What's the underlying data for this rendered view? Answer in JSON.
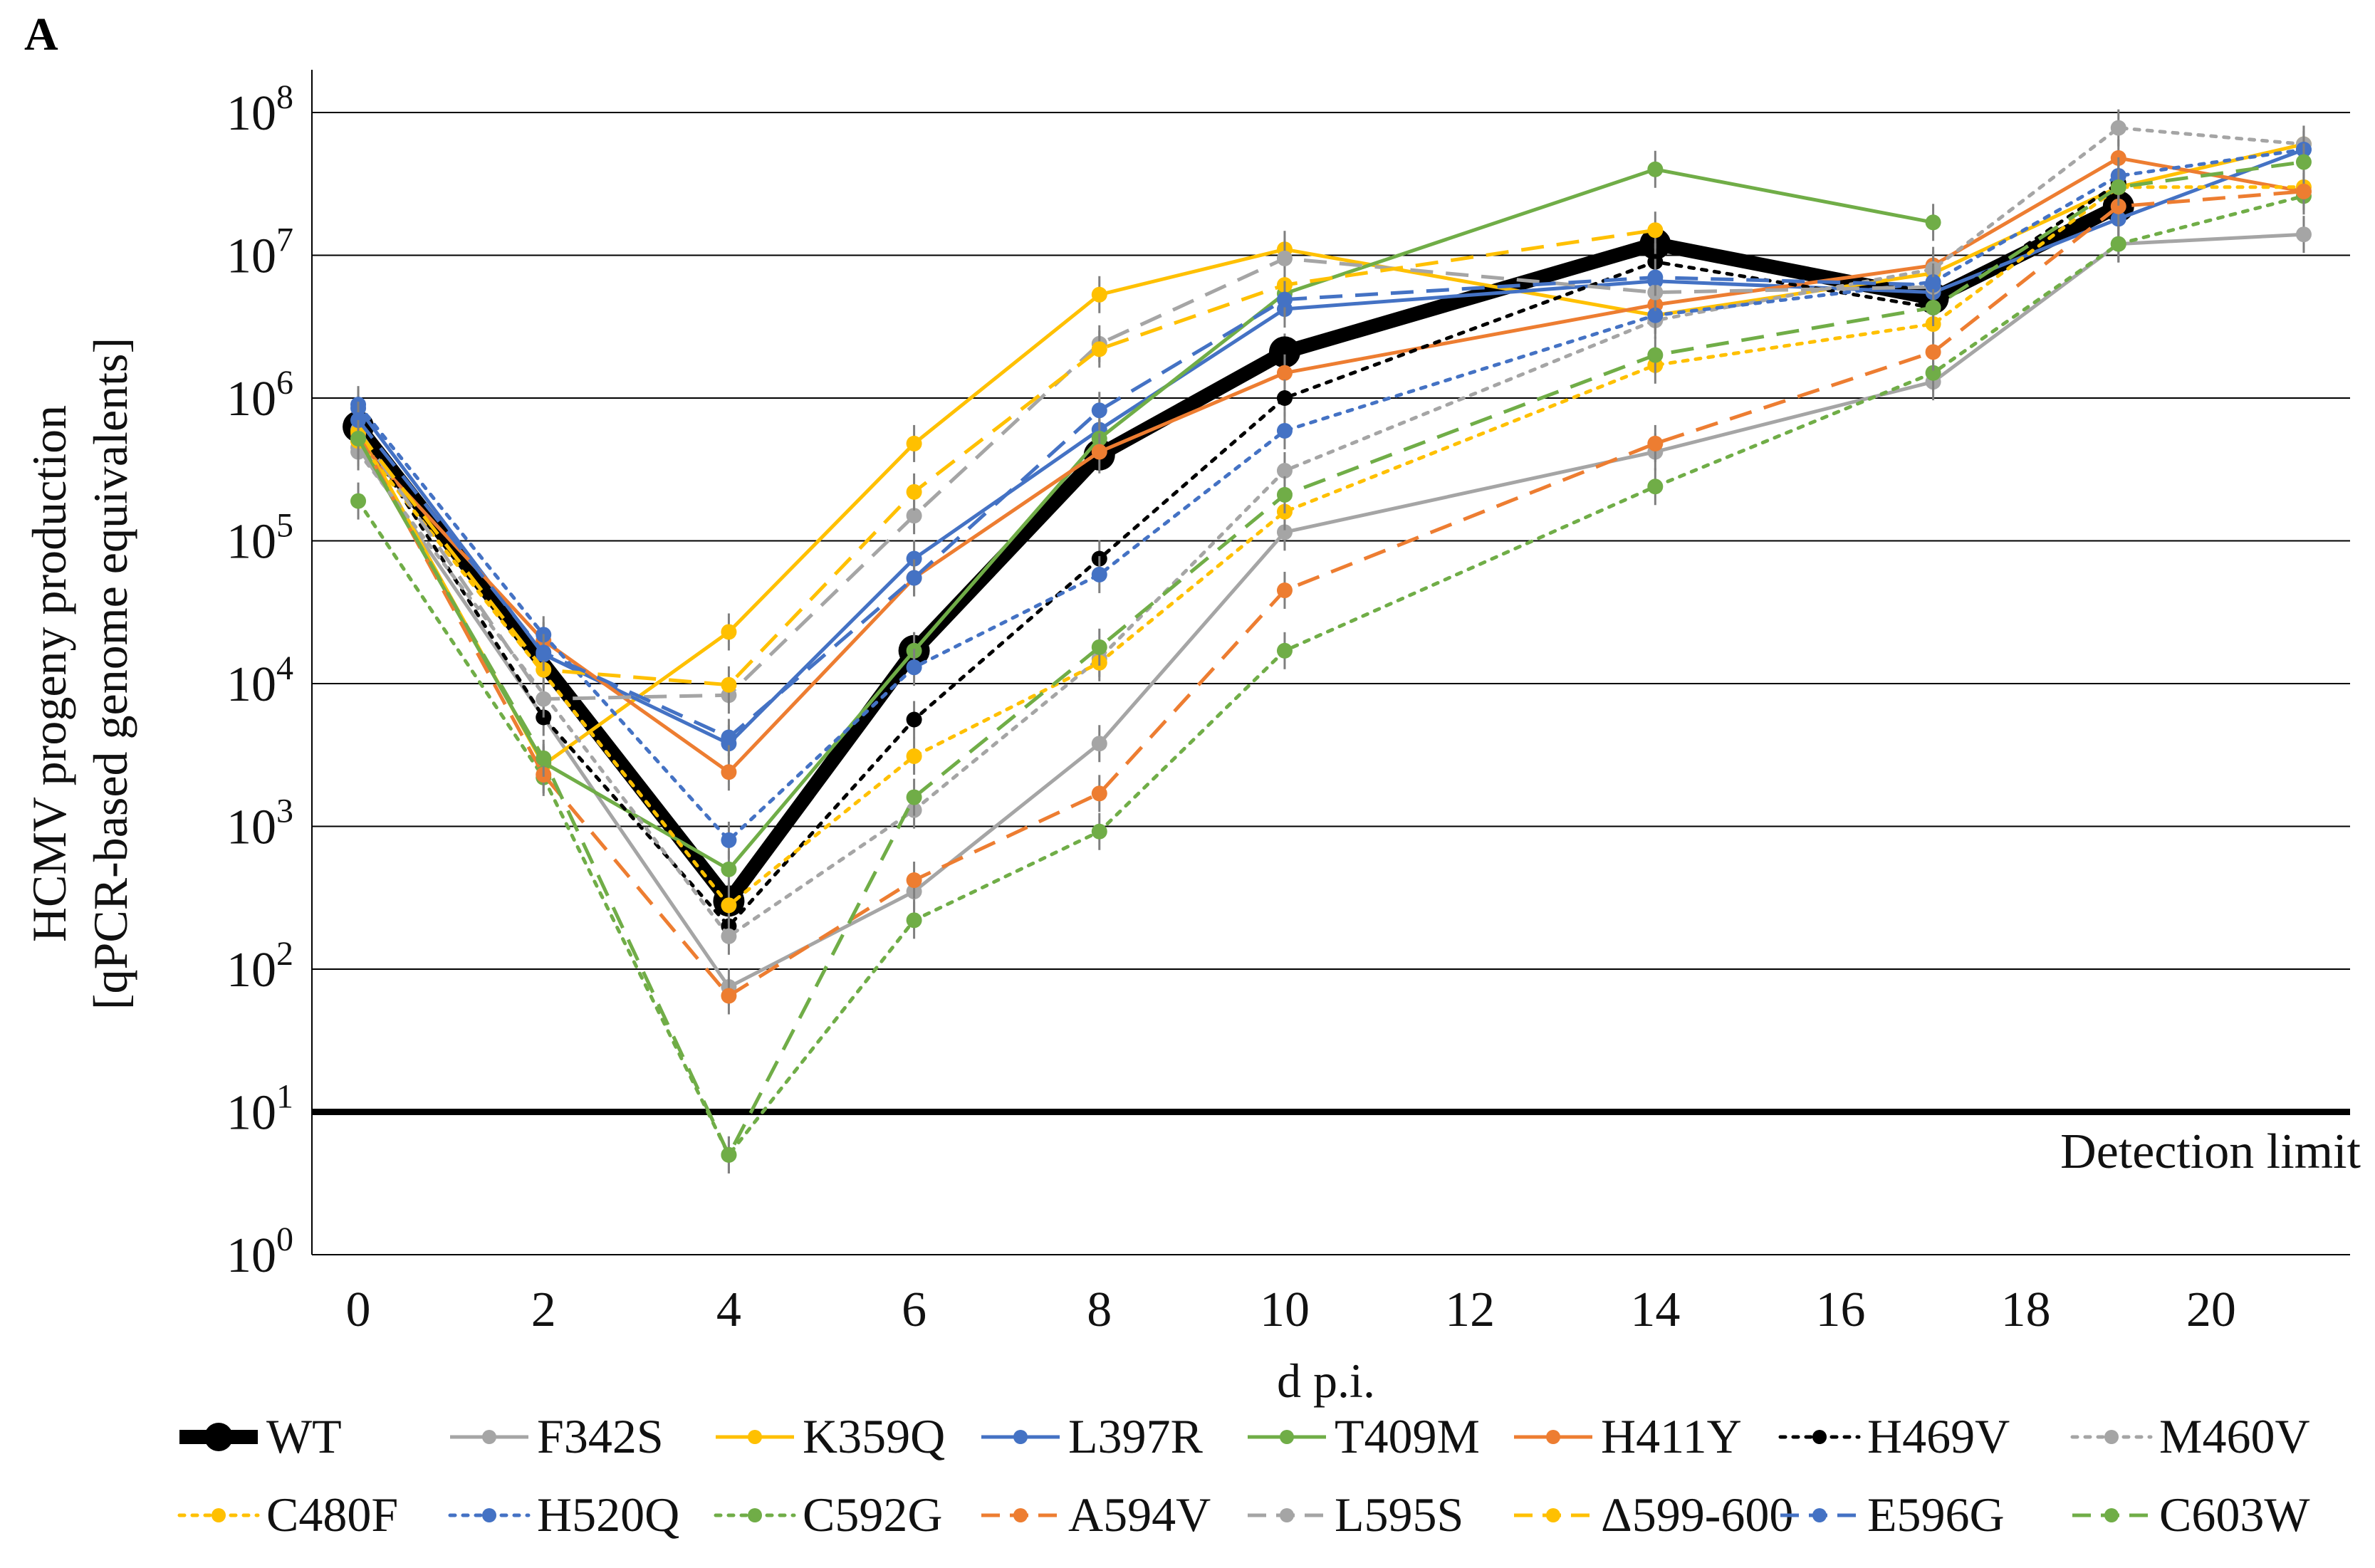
{
  "panel_label": "A",
  "chart_data": {
    "type": "line",
    "title": "",
    "xlabel": "d p.i.",
    "ylabel_line1": "HCMV progeny production",
    "ylabel_line2": "[qPCR-based genome equivalents]",
    "x_ticks": [
      "0",
      "2",
      "4",
      "6",
      "8",
      "10",
      "12",
      "14",
      "16",
      "18",
      "20"
    ],
    "x_tick_values": [
      0,
      2,
      4,
      6,
      8,
      10,
      12,
      14,
      16,
      18,
      20
    ],
    "xlim": [
      -0.5,
      21.5
    ],
    "y_scale": "log10",
    "ylim_exponent": [
      0,
      8
    ],
    "y_ticks": [
      {
        "base": "10",
        "exp": "0",
        "value": 1
      },
      {
        "base": "10",
        "exp": "1",
        "value": 10
      },
      {
        "base": "10",
        "exp": "2",
        "value": 100
      },
      {
        "base": "10",
        "exp": "3",
        "value": 1000
      },
      {
        "base": "10",
        "exp": "4",
        "value": 10000
      },
      {
        "base": "10",
        "exp": "5",
        "value": 100000
      },
      {
        "base": "10",
        "exp": "6",
        "value": 1000000
      },
      {
        "base": "10",
        "exp": "7",
        "value": 10000000
      },
      {
        "base": "10",
        "exp": "8",
        "value": 100000000
      }
    ],
    "grid": true,
    "reference_line": {
      "value": 10,
      "label": "Detection limit"
    },
    "legend_position": "bottom",
    "series": [
      {
        "name": "WT",
        "color": "#000000",
        "style": "solid",
        "bold": true,
        "x": [
          0,
          4,
          6,
          8,
          10,
          14,
          17,
          19
        ],
        "values": [
          630000,
          300,
          17000,
          400000,
          2100000,
          12000000,
          5000000,
          22000000
        ]
      },
      {
        "name": "F342S",
        "color": "#A5A5A5",
        "style": "solid",
        "x": [
          0,
          4,
          6,
          8,
          10,
          14,
          17,
          19,
          21
        ],
        "values": [
          450000,
          75,
          350,
          3800,
          115000,
          420000,
          1300000,
          12000000,
          14000000
        ]
      },
      {
        "name": "K359Q",
        "color": "#FFC000",
        "style": "solid",
        "x": [
          0,
          2,
          4,
          6,
          8,
          10,
          14,
          17,
          19,
          21
        ],
        "values": [
          600000,
          2700,
          23000,
          480000,
          5300000,
          11000000,
          3800000,
          7500000,
          30000000,
          60000000
        ]
      },
      {
        "name": "L397R",
        "color": "#4472C4",
        "style": "solid",
        "x": [
          0,
          2,
          4,
          6,
          8,
          10,
          14,
          17,
          19,
          21
        ],
        "values": [
          850000,
          16000,
          3800,
          75000,
          600000,
          4200000,
          6600000,
          5500000,
          18000000,
          55000000
        ]
      },
      {
        "name": "T409M",
        "color": "#70AD47",
        "style": "solid",
        "x": [
          0,
          2,
          4,
          6,
          8,
          10,
          14,
          17
        ],
        "values": [
          520000,
          2800,
          500,
          17000,
          520000,
          5400000,
          40000000,
          17000000
        ]
      },
      {
        "name": "H411Y",
        "color": "#ED7D31",
        "style": "solid",
        "x": [
          0,
          2,
          4,
          6,
          8,
          10,
          14,
          17,
          19,
          21
        ],
        "values": [
          500000,
          20000,
          2400,
          55000,
          420000,
          1500000,
          4500000,
          8500000,
          48000000,
          28000000
        ]
      },
      {
        "name": "H469V",
        "color": "#000000",
        "style": "dotted",
        "x": [
          0,
          2,
          4,
          6,
          8,
          10,
          14,
          17,
          19
        ],
        "values": [
          620000,
          5800,
          200,
          5600,
          75000,
          1000000,
          9000000,
          4300000,
          32000000
        ]
      },
      {
        "name": "M460V",
        "color": "#A5A5A5",
        "style": "dotted",
        "x": [
          0,
          4,
          6,
          8,
          10,
          14,
          17,
          19,
          21
        ],
        "values": [
          420000,
          170,
          1300,
          15000,
          310000,
          3500000,
          8000000,
          78000000,
          60000000
        ]
      },
      {
        "name": "C480F",
        "color": "#FFC000",
        "style": "dotted",
        "x": [
          0,
          4,
          6,
          8,
          10,
          14,
          17,
          19,
          21
        ],
        "values": [
          500000,
          280,
          3100,
          14000,
          160000,
          1700000,
          3300000,
          30000000,
          30000000
        ]
      },
      {
        "name": "H520Q",
        "color": "#4472C4",
        "style": "dotted",
        "x": [
          0,
          2,
          4,
          6,
          8,
          10,
          14,
          17,
          19,
          21
        ],
        "values": [
          900000,
          22000,
          800,
          13000,
          58000,
          590000,
          3800000,
          6500000,
          36000000,
          55000000
        ]
      },
      {
        "name": "C592G",
        "color": "#70AD47",
        "style": "dotted",
        "x": [
          0,
          2,
          4,
          6,
          8,
          10,
          14,
          17,
          19,
          21
        ],
        "values": [
          190000,
          2200,
          5,
          220,
          920,
          17000,
          240000,
          1500000,
          12000000,
          26000000
        ]
      },
      {
        "name": "A594V",
        "color": "#ED7D31",
        "style": "dashed",
        "x": [
          0,
          2,
          4,
          6,
          8,
          10,
          14,
          17,
          19,
          21
        ],
        "values": [
          560000,
          2300,
          65,
          420,
          1700,
          45000,
          480000,
          2100000,
          22000000,
          28000000
        ]
      },
      {
        "name": "L595S",
        "color": "#A5A5A5",
        "style": "dashed",
        "x": [
          0,
          2,
          4,
          6,
          8,
          10,
          14,
          17
        ],
        "values": [
          600000,
          7800,
          8300,
          150000,
          2400000,
          9500000,
          5500000,
          6000000
        ]
      },
      {
        "name": "Δ599-600",
        "color": "#FFC000",
        "style": "dashed",
        "x": [
          0,
          2,
          4,
          6,
          8,
          10,
          14
        ],
        "values": [
          580000,
          12500,
          9800,
          220000,
          2200000,
          6200000,
          15000000
        ]
      },
      {
        "name": "E596G",
        "color": "#4472C4",
        "style": "dashed",
        "x": [
          0,
          2,
          4,
          6,
          8,
          10,
          14,
          17
        ],
        "values": [
          700000,
          16500,
          4200,
          55000,
          820000,
          4900000,
          7000000,
          6200000
        ]
      },
      {
        "name": "C603W",
        "color": "#70AD47",
        "style": "dashed",
        "x": [
          0,
          2,
          4,
          6,
          8,
          10,
          14,
          17,
          19,
          21
        ],
        "values": [
          520000,
          3000,
          5,
          1600,
          18000,
          210000,
          2000000,
          4300000,
          30000000,
          45000000
        ]
      }
    ]
  }
}
